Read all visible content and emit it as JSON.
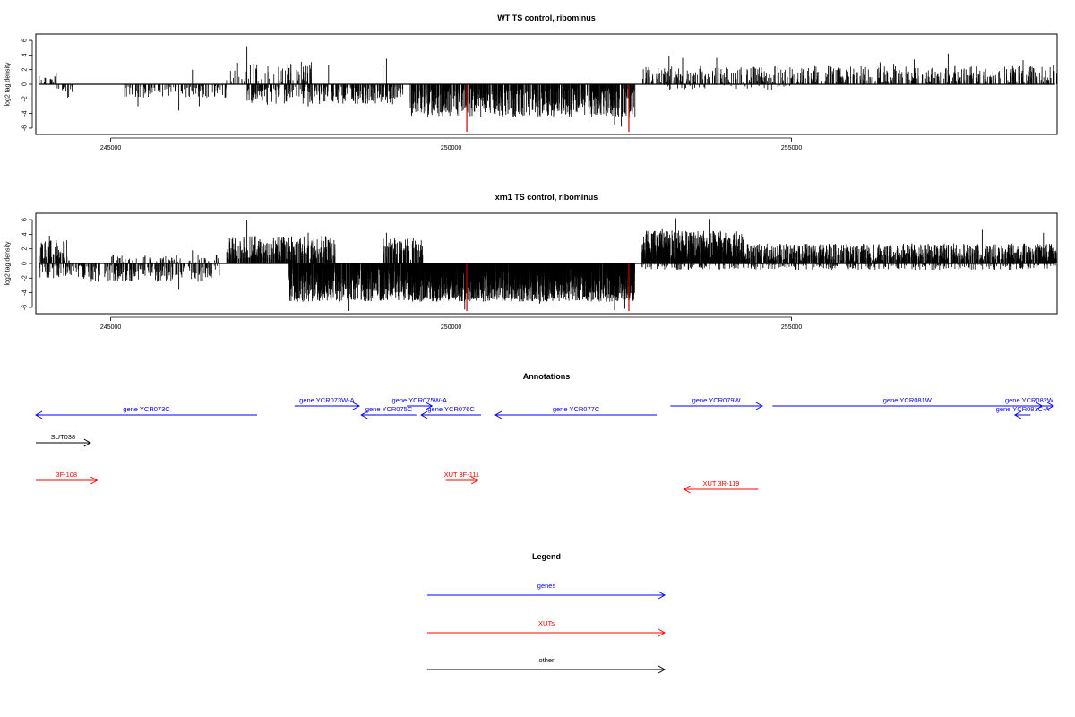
{
  "chart_data": [
    {
      "type": "bar",
      "title": "WT TS control, ribominus",
      "ylabel": "log2 tag density",
      "xlim": [
        243900,
        258900
      ],
      "ylim": [
        -6.5,
        6.5
      ],
      "yticks": [
        "6",
        "4",
        "2",
        "0",
        "-2",
        "-4",
        "-6"
      ],
      "xticks": [
        245000,
        250000,
        255000
      ],
      "xtick_labels": [
        "245000",
        "250000",
        "255000"
      ],
      "grid": false,
      "colors": {
        "bars": "#000000",
        "highlight": "#cc0000"
      },
      "segments": [
        {
          "from": 243950,
          "to": 244200,
          "sign": 1,
          "amp": 1.0,
          "density": 6
        },
        {
          "from": 244200,
          "to": 244450,
          "sign": -1,
          "amp": 1.6,
          "density": 6
        },
        {
          "from": 245200,
          "to": 246700,
          "sign": -1,
          "amp": 1.5,
          "density": 7
        },
        {
          "from": 246700,
          "to": 248000,
          "sign": 1,
          "amp": 2.5,
          "density": 5
        },
        {
          "from": 247000,
          "to": 249300,
          "sign": -1,
          "amp": 2.2,
          "density": 12
        },
        {
          "from": 249400,
          "to": 252700,
          "sign": -1,
          "amp": 3.6,
          "density": 22
        },
        {
          "from": 252800,
          "to": 258900,
          "sign": 1,
          "amp": 2.0,
          "density": 9
        },
        {
          "from": 253000,
          "to": 255000,
          "sign": -1,
          "amp": 0.6,
          "density": 2
        }
      ],
      "peaks": [
        {
          "x": 244200,
          "y": 1.6
        },
        {
          "x": 245400,
          "y": -3.0
        },
        {
          "x": 246000,
          "y": -3.6
        },
        {
          "x": 246200,
          "y": 2.0
        },
        {
          "x": 246300,
          "y": -3.0
        },
        {
          "x": 247000,
          "y": 5.2
        },
        {
          "x": 247050,
          "y": 2.6
        },
        {
          "x": 247300,
          "y": -2.8
        },
        {
          "x": 247900,
          "y": -3.0
        },
        {
          "x": 248200,
          "y": 2.7
        },
        {
          "x": 249050,
          "y": 3.5
        },
        {
          "x": 249000,
          "y": 2.5
        },
        {
          "x": 250500,
          "y": -3.8
        },
        {
          "x": 251200,
          "y": -3.5
        },
        {
          "x": 252400,
          "y": -5.5
        },
        {
          "x": 252500,
          "y": -5.8
        },
        {
          "x": 253200,
          "y": 3.8
        },
        {
          "x": 253400,
          "y": 3.6
        },
        {
          "x": 253900,
          "y": 3.6
        },
        {
          "x": 256300,
          "y": 3.0
        },
        {
          "x": 256500,
          "y": 2.8
        },
        {
          "x": 256800,
          "y": 3.4
        },
        {
          "x": 257300,
          "y": 4.2
        },
        {
          "x": 258400,
          "y": 3.3
        },
        {
          "x": 258850,
          "y": 2.6
        }
      ],
      "highlights": [
        {
          "x": 250230,
          "y": -6.5
        },
        {
          "x": 252610,
          "y": -6.5
        }
      ]
    },
    {
      "type": "bar",
      "title": "xrn1 TS control, ribominus",
      "ylabel": "log2 tag density",
      "xlim": [
        243900,
        258900
      ],
      "ylim": [
        -6.5,
        6.5
      ],
      "yticks": [
        "6",
        "4",
        "2",
        "0",
        "-2",
        "-4",
        "-6"
      ],
      "xticks": [
        245000,
        250000,
        255000
      ],
      "xtick_labels": [
        "245000",
        "250000",
        "255000"
      ],
      "grid": false,
      "colors": {
        "bars": "#000000",
        "highlight": "#cc0000"
      },
      "segments": [
        {
          "from": 243950,
          "to": 244400,
          "sign": 1,
          "amp": 2.6,
          "density": 14
        },
        {
          "from": 243950,
          "to": 244600,
          "sign": -1,
          "amp": 1.6,
          "density": 10
        },
        {
          "from": 244600,
          "to": 246600,
          "sign": -1,
          "amp": 2.0,
          "density": 10
        },
        {
          "from": 245000,
          "to": 246600,
          "sign": 1,
          "amp": 1.0,
          "density": 4
        },
        {
          "from": 246700,
          "to": 248300,
          "sign": 1,
          "amp": 3.0,
          "density": 20
        },
        {
          "from": 247600,
          "to": 249300,
          "sign": -1,
          "amp": 4.2,
          "density": 40
        },
        {
          "from": 249000,
          "to": 249600,
          "sign": 1,
          "amp": 3.0,
          "density": 16
        },
        {
          "from": 249300,
          "to": 252700,
          "sign": -1,
          "amp": 4.2,
          "density": 55
        },
        {
          "from": 252800,
          "to": 254300,
          "sign": 1,
          "amp": 3.6,
          "density": 40
        },
        {
          "from": 254300,
          "to": 258900,
          "sign": 1,
          "amp": 2.2,
          "density": 22
        },
        {
          "from": 252800,
          "to": 258900,
          "sign": -1,
          "amp": 0.7,
          "density": 6
        }
      ],
      "peaks": [
        {
          "x": 244100,
          "y": 3.8
        },
        {
          "x": 244200,
          "y": 3.2
        },
        {
          "x": 246000,
          "y": -3.6
        },
        {
          "x": 246200,
          "y": 1.8
        },
        {
          "x": 247000,
          "y": 6.0
        },
        {
          "x": 247900,
          "y": 4.2
        },
        {
          "x": 248100,
          "y": 3.8
        },
        {
          "x": 248500,
          "y": -6.5
        },
        {
          "x": 249050,
          "y": 4.2
        },
        {
          "x": 250200,
          "y": -6.3
        },
        {
          "x": 251300,
          "y": -5.5
        },
        {
          "x": 252400,
          "y": -6.4
        },
        {
          "x": 252550,
          "y": -6.2
        },
        {
          "x": 253300,
          "y": 6.2
        },
        {
          "x": 253800,
          "y": 6.1
        },
        {
          "x": 253100,
          "y": 4.8
        },
        {
          "x": 257800,
          "y": 4.6
        },
        {
          "x": 258700,
          "y": 4.2
        }
      ],
      "highlights": [
        {
          "x": 250230,
          "y": -6.5
        },
        {
          "x": 252610,
          "y": -6.5
        }
      ]
    }
  ],
  "annotations": {
    "title": "Annotations",
    "xlim": [
      243900,
      258900
    ],
    "features": [
      {
        "label": "gene YCR073C",
        "kind": "gene",
        "color": "#0000ff",
        "start": 243900,
        "end": 247150,
        "strand": "-",
        "row": 1
      },
      {
        "label": "gene YCR073W-A",
        "kind": "gene",
        "color": "#0000ff",
        "start": 247700,
        "end": 248650,
        "strand": "+",
        "row": 0
      },
      {
        "label": "gene YCR075C",
        "kind": "gene",
        "color": "#0000ff",
        "start": 248680,
        "end": 249490,
        "strand": "-",
        "row": 1
      },
      {
        "label": "gene YCR075W-A",
        "kind": "gene",
        "color": "#0000ff",
        "start": 249350,
        "end": 249720,
        "strand": "+",
        "row": 0
      },
      {
        "label": "gene YCR076C",
        "kind": "gene",
        "color": "#0000ff",
        "start": 249560,
        "end": 250440,
        "strand": "-",
        "row": 1
      },
      {
        "label": "gene YCR077C",
        "kind": "gene",
        "color": "#0000ff",
        "start": 250650,
        "end": 253020,
        "strand": "-",
        "row": 1
      },
      {
        "label": "gene YCR079W",
        "kind": "gene",
        "color": "#0000ff",
        "start": 253220,
        "end": 254570,
        "strand": "+",
        "row": 0
      },
      {
        "label": "gene YCR081W",
        "kind": "gene",
        "color": "#0000ff",
        "start": 254720,
        "end": 258680,
        "strand": "+",
        "row": 0
      },
      {
        "label": "gene YCR081C-A",
        "kind": "gene",
        "color": "#0000ff",
        "start": 258280,
        "end": 258510,
        "strand": "-",
        "row": 1
      },
      {
        "label": "gene YCR082W",
        "kind": "gene",
        "color": "#0000ff",
        "start": 258650,
        "end": 259140,
        "strand": "+",
        "row": 0
      },
      {
        "label": "SUT038",
        "kind": "other",
        "color": "#000000",
        "start": 243900,
        "end": 244700,
        "strand": "+",
        "row": 2
      },
      {
        "label": "3F-108",
        "kind": "XUT",
        "color": "#ff0000",
        "start": 243900,
        "end": 244800,
        "strand": "+",
        "row": 3
      },
      {
        "label": "XUT 3F-111",
        "kind": "XUT",
        "color": "#ff0000",
        "start": 249920,
        "end": 250390,
        "strand": "+",
        "row": 3
      },
      {
        "label": "XUT 3R-119",
        "kind": "XUT",
        "color": "#ff0000",
        "start": 253420,
        "end": 254510,
        "strand": "-",
        "row": 4
      }
    ]
  },
  "legend": {
    "title": "Legend",
    "items": [
      {
        "label": "genes",
        "color": "#0000ff"
      },
      {
        "label": "XUTs",
        "color": "#ff0000"
      },
      {
        "label": "other",
        "color": "#000000"
      }
    ]
  }
}
